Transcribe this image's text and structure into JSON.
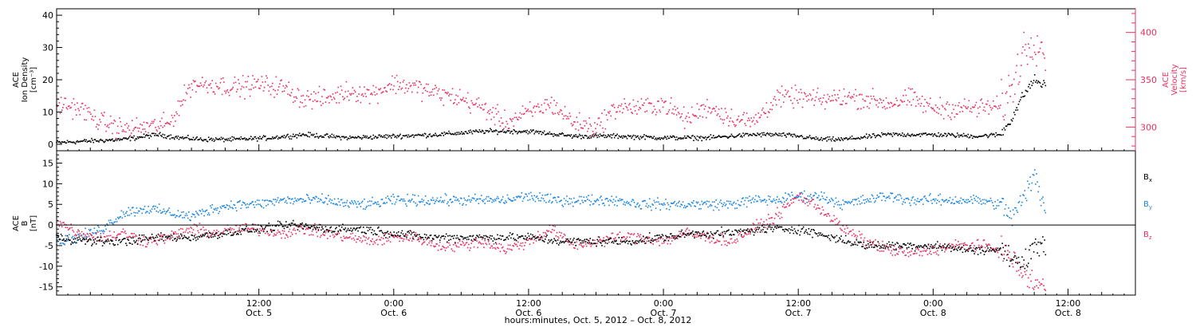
{
  "colors": {
    "black": "#000000",
    "pink": "#e8315f",
    "blue": "#1a86e0",
    "axis": "#000000"
  },
  "chart_data": [
    {
      "type": "scatter",
      "panel": "top",
      "left_axis_label_lines": [
        "ACE",
        "Ion Density",
        "[cm⁻³]"
      ],
      "right_axis_label_lines": [
        "ACE",
        "Velocity",
        "[km/s]"
      ],
      "x_axis_label": "hours:minutes, Oct.  5, 2012 – Oct.  8, 2012",
      "xlim_hours": [
        -6,
        90
      ],
      "x_ticks": [
        {
          "hour": 12,
          "time": "12:00",
          "date": "Oct. 5"
        },
        {
          "hour": 24,
          "time": "0:00",
          "date": "Oct. 6"
        },
        {
          "hour": 36,
          "time": "12:00",
          "date": "Oct. 6"
        },
        {
          "hour": 48,
          "time": "0:00",
          "date": "Oct. 7"
        },
        {
          "hour": 60,
          "time": "12:00",
          "date": "Oct. 7"
        },
        {
          "hour": 72,
          "time": "0:00",
          "date": "Oct. 8"
        },
        {
          "hour": 84,
          "time": "12:00",
          "date": "Oct. 8"
        }
      ],
      "ylim_left": [
        -2,
        42
      ],
      "y_ticks_left": [
        0,
        10,
        20,
        30,
        40
      ],
      "ylim_right": [
        275,
        425
      ],
      "y_ticks_right": [
        300,
        350,
        400
      ],
      "series": [
        {
          "color": "#000000",
          "axis": "left",
          "x": [
            -6,
            -3,
            0,
            3,
            5,
            7,
            10,
            13,
            16,
            20,
            24,
            28,
            32,
            36,
            40,
            44,
            48,
            52,
            56,
            58,
            60,
            62,
            64,
            68,
            72,
            76,
            78,
            79,
            80,
            81,
            82
          ],
          "y": [
            0.5,
            1,
            1.5,
            3,
            2,
            1.5,
            1.5,
            2,
            3,
            2,
            2.5,
            3,
            4,
            4,
            2.5,
            2.5,
            2,
            2,
            3,
            3,
            2.5,
            1.5,
            1.5,
            3,
            3,
            2.5,
            3,
            8,
            15,
            20,
            18
          ]
        },
        {
          "color": "#e8315f",
          "axis": "right",
          "x": [
            -6,
            -4,
            -2,
            0,
            2,
            4,
            6,
            8,
            10,
            12,
            14,
            16,
            18,
            20,
            22,
            24,
            26,
            28,
            30,
            32,
            34,
            36,
            38,
            40,
            42,
            44,
            46,
            48,
            50,
            52,
            54,
            56,
            58,
            60,
            62,
            64,
            66,
            68,
            70,
            72,
            74,
            76,
            78,
            79,
            80,
            81,
            82
          ],
          "y": [
            325,
            320,
            305,
            298,
            300,
            303,
            345,
            345,
            342,
            345,
            342,
            330,
            330,
            338,
            335,
            346,
            342,
            335,
            330,
            320,
            305,
            315,
            325,
            305,
            300,
            322,
            320,
            325,
            308,
            322,
            310,
            305,
            330,
            332,
            328,
            332,
            330,
            325,
            330,
            320,
            320,
            320,
            322,
            340,
            380,
            395,
            380
          ]
        }
      ]
    },
    {
      "type": "scatter",
      "panel": "bottom",
      "left_axis_label_lines": [
        "ACE",
        "B",
        "[nT]"
      ],
      "ylim": [
        -17,
        18
      ],
      "y_ticks": [
        -15,
        -10,
        -5,
        0,
        5,
        10,
        15
      ],
      "zero_line": true,
      "legend": [
        "Bx",
        "By",
        "Bz"
      ],
      "legend_placement": "right",
      "series": [
        {
          "name": "Bx",
          "color": "#000000",
          "x": [
            -6,
            -3,
            0,
            3,
            6,
            9,
            12,
            15,
            18,
            21,
            24,
            27,
            30,
            33,
            36,
            39,
            42,
            45,
            48,
            51,
            54,
            57,
            60,
            63,
            66,
            69,
            72,
            75,
            78,
            79,
            80,
            81,
            82
          ],
          "y": [
            -3,
            -4,
            -4,
            -3,
            -3,
            -2,
            -1,
            0,
            -1,
            -1,
            -2,
            -3,
            -3,
            -3,
            -3,
            -4,
            -4,
            -4,
            -3,
            -2,
            -2,
            -1,
            -1,
            -3,
            -5,
            -5,
            -5,
            -6,
            -6,
            -8,
            -10,
            -4,
            -6
          ]
        },
        {
          "name": "By",
          "color": "#1a86e0",
          "x": [
            -6,
            -4,
            -2,
            0,
            2,
            4,
            6,
            8,
            10,
            12,
            14,
            16,
            18,
            20,
            22,
            24,
            26,
            28,
            30,
            32,
            34,
            36,
            38,
            40,
            42,
            44,
            46,
            48,
            50,
            52,
            54,
            56,
            58,
            60,
            62,
            64,
            66,
            68,
            70,
            72,
            74,
            76,
            78,
            79,
            80,
            81,
            82
          ],
          "y": [
            -4,
            -3,
            -1,
            3,
            4,
            3,
            2,
            4,
            5,
            5,
            6,
            6,
            6,
            5,
            5,
            6,
            6,
            6,
            6,
            6,
            6,
            7,
            6,
            6,
            6,
            6,
            5,
            5,
            5,
            5,
            5,
            6,
            6,
            7,
            7,
            5,
            6,
            7,
            6,
            6,
            6,
            6,
            5,
            2,
            6,
            12,
            4
          ]
        },
        {
          "name": "Bz",
          "color": "#e8315f",
          "x": [
            -6,
            -4,
            -2,
            0,
            2,
            4,
            6,
            8,
            10,
            12,
            14,
            16,
            18,
            20,
            22,
            24,
            26,
            28,
            30,
            32,
            34,
            36,
            38,
            40,
            42,
            44,
            46,
            48,
            50,
            52,
            54,
            56,
            58,
            60,
            62,
            64,
            66,
            68,
            70,
            72,
            74,
            76,
            78,
            79,
            80,
            81,
            82
          ],
          "y": [
            1,
            -2,
            -3,
            -2,
            -4,
            -3,
            -1,
            -2,
            -1,
            -1,
            -2,
            -1,
            -2,
            -3,
            -4,
            -3,
            -3,
            -5,
            -5,
            -4,
            -6,
            -4,
            -1,
            -5,
            -4,
            -3,
            -3,
            -4,
            -2,
            -3,
            -4,
            -1,
            2,
            7,
            4,
            -1,
            -4,
            -6,
            -7,
            -6,
            -5,
            -5,
            -6,
            -8,
            -12,
            -14,
            -15
          ]
        }
      ]
    }
  ]
}
